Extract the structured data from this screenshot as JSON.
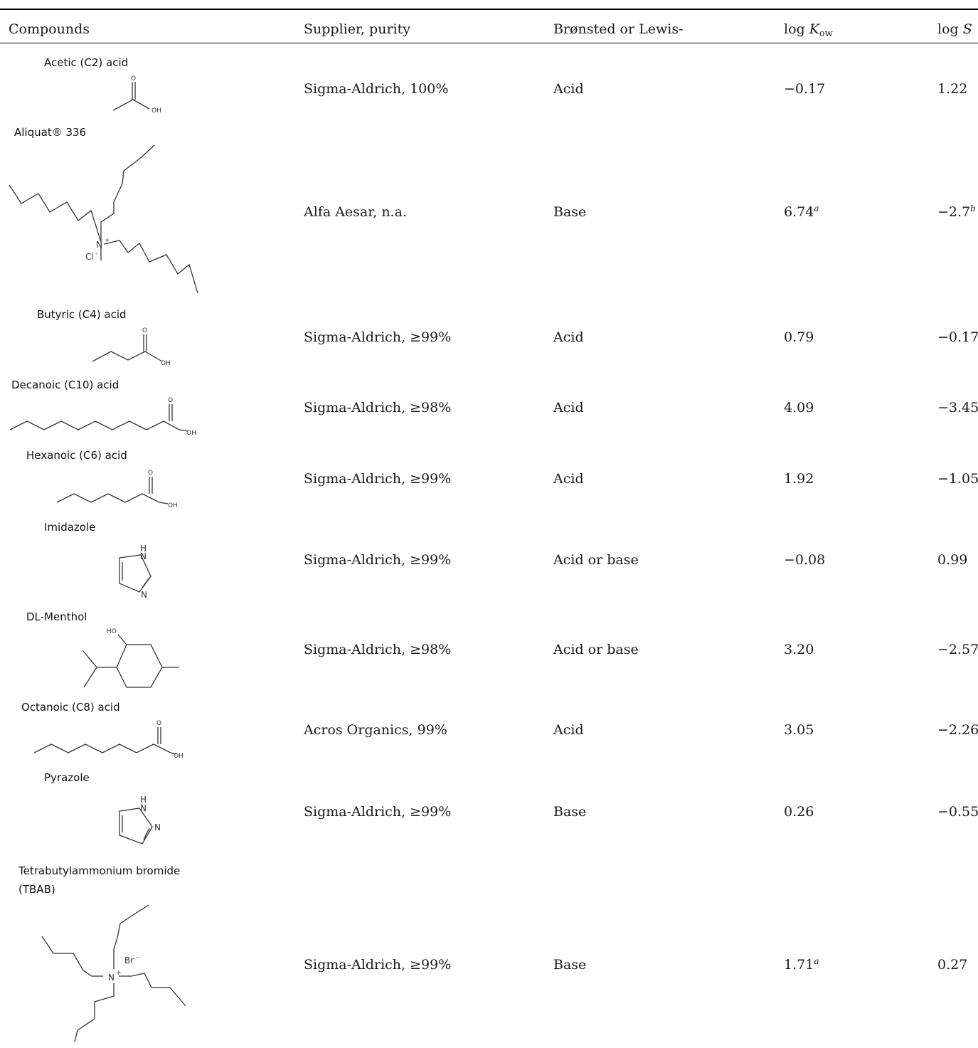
{
  "table": {
    "headers": {
      "compounds": "Compounds",
      "supplier": "Supplier, purity",
      "type": "Brønsted or Lewis-",
      "logkow_prefix": "log ",
      "logkow_k": "K",
      "logkow_sub": "ow",
      "logs_prefix": "log ",
      "logs_s": "S"
    },
    "rows": [
      {
        "name": "Acetic (C2) acid",
        "supplier": "Sigma-Aldrich, 100%",
        "type": "Acid",
        "log_kow": "−0.17",
        "log_kow_note": "",
        "log_s": "1.22",
        "log_s_note": ""
      },
      {
        "name": "Aliquat® 336",
        "supplier": "Alfa Aesar, n.a.",
        "type": "Base",
        "log_kow": "6.74",
        "log_kow_note": "a",
        "log_s": "−2.7",
        "log_s_note": "b"
      },
      {
        "name": "Butyric (C4) acid",
        "supplier": "Sigma-Aldrich, ≥99%",
        "type": "Acid",
        "log_kow": "0.79",
        "log_kow_note": "",
        "log_s": "−0.17",
        "log_s_note": ""
      },
      {
        "name": "Decanoic (C10) acid",
        "supplier": "Sigma-Aldrich, ≥98%",
        "type": "Acid",
        "log_kow": "4.09",
        "log_kow_note": "",
        "log_s": "−3.45",
        "log_s_note": ""
      },
      {
        "name": "Hexanoic (C6) acid",
        "supplier": "Sigma-Aldrich, ≥99%",
        "type": "Acid",
        "log_kow": "1.92",
        "log_kow_note": "",
        "log_s": "−1.05",
        "log_s_note": ""
      },
      {
        "name": "Imidazole",
        "supplier": "Sigma-Aldrich, ≥99%",
        "type": "Acid or base",
        "log_kow": "−0.08",
        "log_kow_note": "",
        "log_s": "0.99",
        "log_s_note": ""
      },
      {
        "name": "DL-Menthol",
        "supplier": "Sigma-Aldrich, ≥98%",
        "type": "Acid or base",
        "log_kow": "3.20",
        "log_kow_note": "",
        "log_s": "−2.57",
        "log_s_note": ""
      },
      {
        "name": "Octanoic (C8) acid",
        "supplier": "Acros Organics, 99%",
        "type": "Acid",
        "log_kow": "3.05",
        "log_kow_note": "",
        "log_s": "−2.26",
        "log_s_note": ""
      },
      {
        "name": "Pyrazole",
        "supplier": "Sigma-Aldrich, ≥99%",
        "type": "Base",
        "log_kow": "0.26",
        "log_kow_note": "",
        "log_s": "−0.55",
        "log_s_note": ""
      },
      {
        "name": "Tetrabutylammonium bromide",
        "name_line2": "(TBAB)",
        "supplier": "Sigma-Aldrich, ≥99%",
        "type": "Base",
        "log_kow": "1.71",
        "log_kow_note": "a",
        "log_s": "0.27",
        "log_s_note": ""
      }
    ]
  },
  "atom_labels": {
    "o": "O",
    "oh": "OH",
    "ho": "HO",
    "h": "H",
    "n": "N",
    "nplus": "N",
    "plus": "+",
    "cl": "Cl",
    "minus": "-",
    "br": "Br",
    "bminus": "-"
  }
}
